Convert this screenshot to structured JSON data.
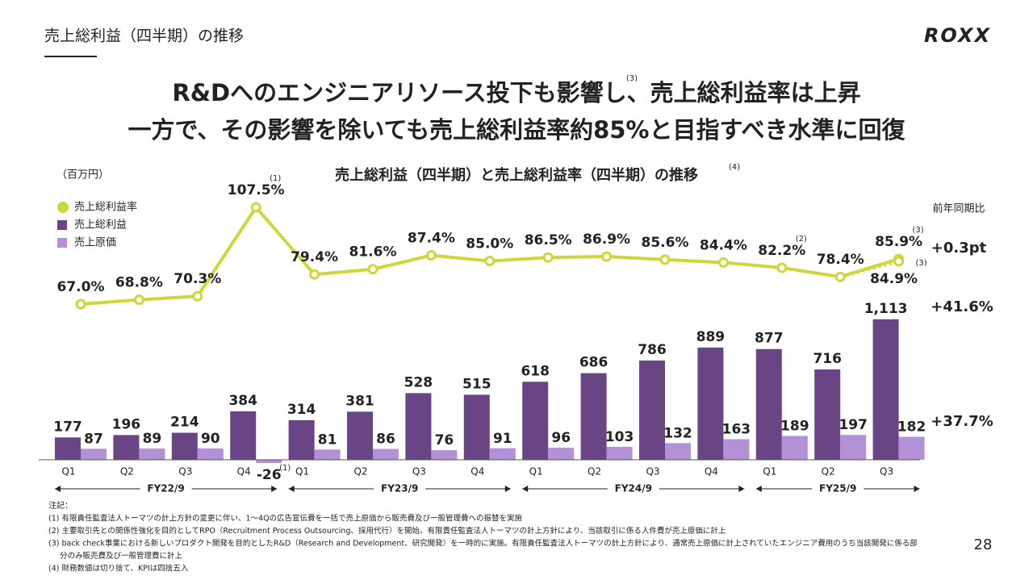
{
  "header": {
    "title": "売上総利益（四半期）の推移",
    "logo": "ROXX",
    "page": "28"
  },
  "headline": {
    "line1": "R&Dへのエンジニアリソース投下も影響し、売上総利益率は上昇",
    "line1_note": "(3)",
    "line2": "一方で、その影響を除いても売上総利益率約85%と目指すべき水準に回復"
  },
  "chart_data": {
    "type": "bar-line",
    "title": "売上総利益（四半期）と売上総利益率（四半期）の推移",
    "title_note": "(4)",
    "unit": "（百万円）",
    "groups": [
      {
        "name": "FY22/9",
        "categories": [
          "Q1",
          "Q2",
          "Q3",
          "Q4"
        ]
      },
      {
        "name": "FY23/9",
        "categories": [
          "Q1",
          "Q2",
          "Q3",
          "Q4"
        ]
      },
      {
        "name": "FY24/9",
        "categories": [
          "Q1",
          "Q2",
          "Q3",
          "Q4"
        ]
      },
      {
        "name": "FY25/9",
        "categories": [
          "Q1",
          "Q2",
          "Q3"
        ]
      }
    ],
    "series": [
      {
        "name": "売上総利益率",
        "color": "#cdd73a",
        "axis": "y2",
        "values": [
          67.0,
          68.8,
          70.3,
          107.5,
          79.4,
          81.6,
          87.4,
          85.0,
          86.5,
          86.9,
          85.6,
          84.4,
          82.2,
          78.4,
          85.9
        ],
        "value_labels": [
          "67.0%",
          "68.8%",
          "70.3%",
          "107.5%",
          "79.4%",
          "81.6%",
          "87.4%",
          "85.0%",
          "86.5%",
          "86.9%",
          "85.6%",
          "84.4%",
          "82.2%",
          "78.4%",
          "85.9%"
        ]
      },
      {
        "name": "売上総利益",
        "color": "#6a4586",
        "values": [
          177,
          196,
          214,
          384,
          314,
          381,
          528,
          515,
          618,
          686,
          786,
          889,
          877,
          716,
          1113
        ],
        "value_labels": [
          "177",
          "196",
          "214",
          "384",
          "314",
          "381",
          "528",
          "515",
          "618",
          "686",
          "786",
          "889",
          "877",
          "716",
          "1,113"
        ]
      },
      {
        "name": "売上原価",
        "color": "#b291d6",
        "values": [
          87,
          89,
          90,
          -26,
          81,
          86,
          76,
          91,
          96,
          103,
          132,
          163,
          189,
          197,
          182
        ]
      }
    ],
    "adjusted_margin": {
      "value": 84.9,
      "label": "84.9%",
      "note": "(3)"
    },
    "annotations": [
      {
        "series": 0,
        "index": 3,
        "text": "(1)"
      },
      {
        "series": 2,
        "index": 3,
        "text": "(1)"
      },
      {
        "series": 0,
        "index": 12,
        "text": "(2)"
      },
      {
        "series": 0,
        "index": 14,
        "text": "(3)"
      }
    ],
    "yoy": {
      "header": "前年同期比",
      "margin": "+0.3pt",
      "gross_profit": "+41.6%",
      "cost": "+37.7%"
    }
  },
  "notes": {
    "title": "注記：",
    "items": [
      "(1) 有限責任監査法人トーマツの計上方針の変更に伴い、1〜4Qの広告宣伝費を一括で売上原価から販売費及び一般管理費への振替を実施",
      "(2) 主要取引先との関係性強化を目的としてRPO（Recruitment Process Outsourcing、採用代行）を開始。有限責任監査法人トーマツの計上方針により、当該取引に係る人件費が売上原価に計上",
      "(3) back check事業における新しいプロダクト開発を目的としたR&D（Research and Development、研究開発）を一時的に実施。有限責任監査法人トーマツの計上方針により、通常売上原価に計上されていたエンジニア費用のうち当該開発に係る部",
      "分のみ販売費及び一般管理費に計上",
      "(4) 財務数値は切り捨て、KPIは四捨五入"
    ]
  }
}
